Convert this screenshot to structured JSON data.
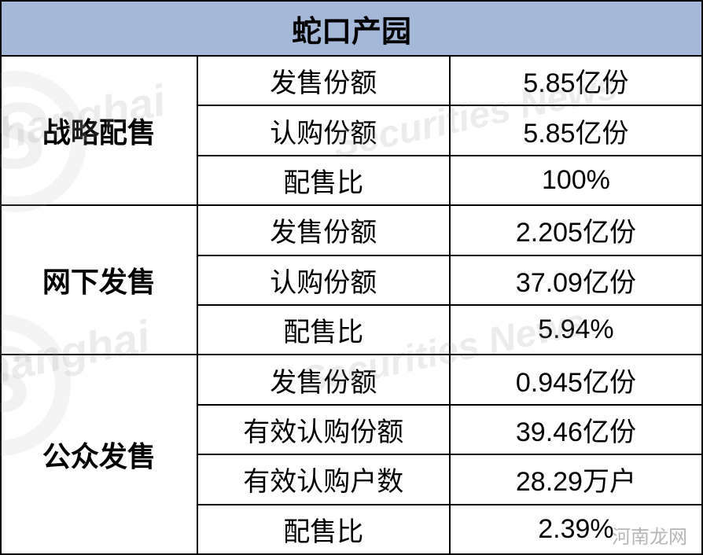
{
  "table": {
    "title": "蛇口产园",
    "header_bg": "#a4b8d8",
    "border_color": "#000000",
    "text_color": "#000000",
    "title_fontsize": 38,
    "cell_fontsize": 34,
    "label_fontsize": 36,
    "columns_width_pct": [
      28,
      36,
      36
    ],
    "sections": [
      {
        "label": "战略配售",
        "rows": [
          {
            "name": "发售份额",
            "value": "5.85亿份"
          },
          {
            "name": "认购份额",
            "value": "5.85亿份"
          },
          {
            "name": "配售比",
            "value": "100%"
          }
        ]
      },
      {
        "label": "网下发售",
        "rows": [
          {
            "name": "发售份额",
            "value": "2.205亿份"
          },
          {
            "name": "认购份额",
            "value": "37.09亿份"
          },
          {
            "name": "配售比",
            "value": "5.94%"
          }
        ]
      },
      {
        "label": "公众发售",
        "rows": [
          {
            "name": "发售份额",
            "value": "0.945亿份"
          },
          {
            "name": "有效认购份额",
            "value": "39.46亿份"
          },
          {
            "name": "有效认购户数",
            "value": "28.29万户"
          },
          {
            "name": "配售比",
            "value": "2.39%"
          }
        ]
      }
    ]
  },
  "watermarks": {
    "text1": "Shanghai",
    "text2": "Securities News",
    "footer": "河南龙网"
  }
}
